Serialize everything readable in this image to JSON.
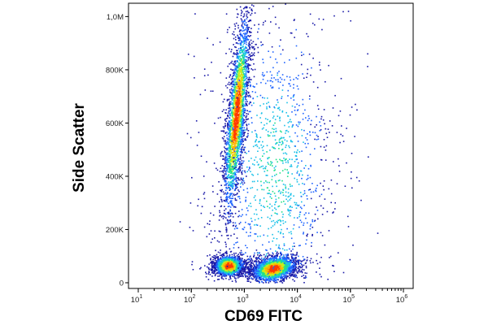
{
  "chart_data": {
    "type": "scatter",
    "subtype": "flow-cytometry-density-dot-plot",
    "title": "",
    "xlabel": "CD69 FITC",
    "ylabel": "Side Scatter",
    "x_scale": "log",
    "xlim": [
      10,
      1000000
    ],
    "ylim": [
      0,
      1050000
    ],
    "grid": false,
    "x_ticks": [
      {
        "value": 10,
        "base": "10",
        "exp": "1"
      },
      {
        "value": 100,
        "base": "10",
        "exp": "2"
      },
      {
        "value": 1000,
        "base": "10",
        "exp": "3"
      },
      {
        "value": 10000,
        "base": "10",
        "exp": "4"
      },
      {
        "value": 100000,
        "base": "10",
        "exp": "5"
      },
      {
        "value": 1000000,
        "base": "10",
        "exp": "6"
      }
    ],
    "y_ticks": [
      {
        "value": 0,
        "label": "0"
      },
      {
        "value": 200000,
        "label": "200K"
      },
      {
        "value": 400000,
        "label": "400K"
      },
      {
        "value": 600000,
        "label": "600K"
      },
      {
        "value": 800000,
        "label": "800K"
      },
      {
        "value": 1000000,
        "label": "1,0M"
      }
    ],
    "color_scale": [
      "#1a1aa8",
      "#1f64ff",
      "#18c0e8",
      "#22e08a",
      "#c8ee1e",
      "#ffb400",
      "#ff3a00"
    ],
    "populations": [
      {
        "x_center": 700,
        "y_center": 630000,
        "x_spread_decades": 0.09,
        "y_spread": 170000,
        "tilt_decades_per_100k": 0.045,
        "count": 2600,
        "peak_y": 680000
      },
      {
        "x_center": 500,
        "y_center": 65000,
        "x_spread_decades": 0.16,
        "y_spread": 18000,
        "tilt_decades_per_100k": 0,
        "count": 1700,
        "peak_y": 65000
      },
      {
        "x_center": 3500,
        "y_center": 55000,
        "x_spread_decades": 0.22,
        "y_spread": 22000,
        "tilt_decades_per_100k": 0.25,
        "count": 2000,
        "peak_y": 50000
      },
      {
        "x_center": 3500,
        "y_center": 420000,
        "x_spread_decades": 0.65,
        "y_spread": 300000,
        "tilt_decades_per_100k": 0,
        "count": 1300,
        "peak_y": 420000
      }
    ]
  }
}
